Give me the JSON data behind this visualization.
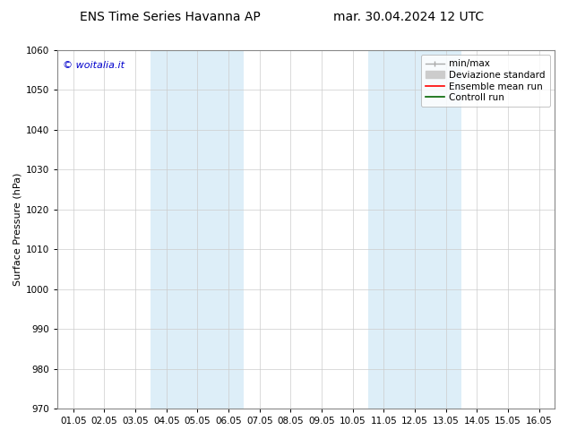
{
  "title_left": "ENS Time Series Havanna AP",
  "title_right": "mar. 30.04.2024 12 UTC",
  "ylabel": "Surface Pressure (hPa)",
  "ylim": [
    970,
    1060
  ],
  "yticks": [
    970,
    980,
    990,
    1000,
    1010,
    1020,
    1030,
    1040,
    1050,
    1060
  ],
  "xtick_labels": [
    "01.05",
    "02.05",
    "03.05",
    "04.05",
    "05.05",
    "06.05",
    "07.05",
    "08.05",
    "09.05",
    "10.05",
    "11.05",
    "12.05",
    "13.05",
    "14.05",
    "15.05",
    "16.05"
  ],
  "shaded_bands": [
    {
      "xstart": 3,
      "xend": 5,
      "color": "#ddeef8"
    },
    {
      "xstart": 10,
      "xend": 12,
      "color": "#ddeef8"
    }
  ],
  "watermark_text": "© woitalia.it",
  "watermark_color": "#0000cc",
  "background_color": "#ffffff",
  "grid_color": "#cccccc",
  "spine_color": "#888888",
  "title_fontsize": 10,
  "tick_fontsize": 7.5,
  "ylabel_fontsize": 8,
  "watermark_fontsize": 8,
  "legend_fontsize": 7.5
}
